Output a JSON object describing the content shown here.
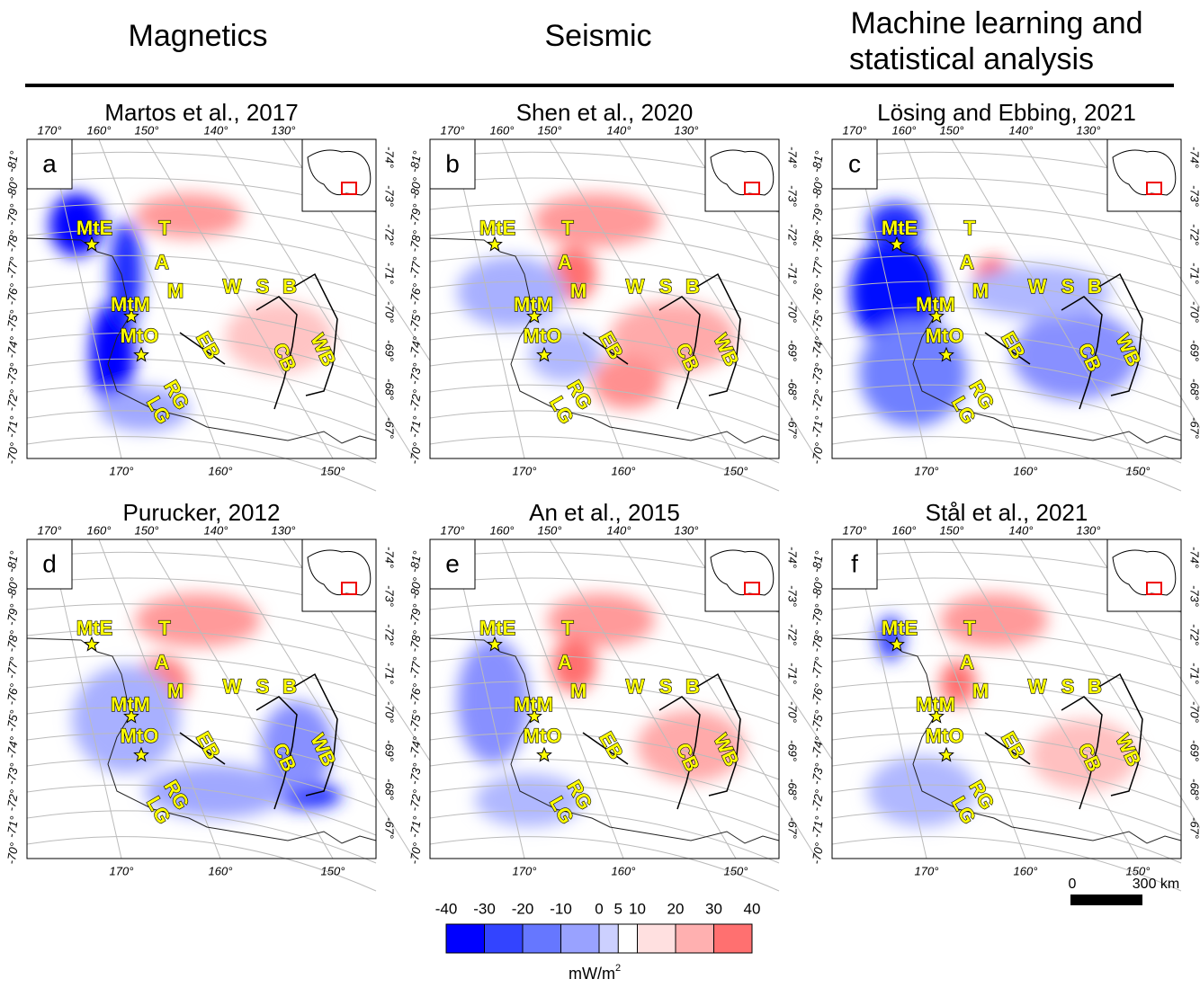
{
  "header": {
    "columns": [
      "Magnetics",
      "Seismic",
      "Machine learning and",
      "statistical analysis"
    ]
  },
  "panels": [
    {
      "letter": "a",
      "title": "Martos et al., 2017"
    },
    {
      "letter": "b",
      "title": "Shen et al., 2020"
    },
    {
      "letter": "c",
      "title": "Lösing and Ebbing, 2021"
    },
    {
      "letter": "d",
      "title": "Purucker, 2012"
    },
    {
      "letter": "e",
      "title": "An et al., 2015"
    },
    {
      "letter": "f",
      "title": "Stål et al., 2021"
    }
  ],
  "map_labels": {
    "top_lon": [
      "170°",
      "160°",
      "150°",
      "140°",
      "130°"
    ],
    "bottom_lon": [
      "170°",
      "160°",
      "150°"
    ],
    "left_lat": [
      "-81°",
      "-80°",
      "-79°",
      "-78°",
      "-77°",
      "-76°",
      "-75°",
      "-74°",
      "-73°",
      "-72°",
      "-71°",
      "-70°"
    ],
    "right_lat": [
      "-74°",
      "-73°",
      "-72°",
      "-71°",
      "-70°",
      "-69°",
      "-68°",
      "-67°"
    ],
    "features": [
      "MtE",
      "MtM",
      "MtO",
      "T",
      "A",
      "M",
      "W",
      "S",
      "B",
      "EB",
      "CB",
      "WB",
      "RG",
      "LG"
    ]
  },
  "colorbar": {
    "ticks": [
      -40,
      -30,
      -20,
      -10,
      0,
      5,
      10,
      20,
      30,
      40
    ],
    "unit": "mW/m",
    "unit_exponent": "2"
  },
  "scale_bar": {
    "start": "0",
    "end": "300 km"
  }
}
